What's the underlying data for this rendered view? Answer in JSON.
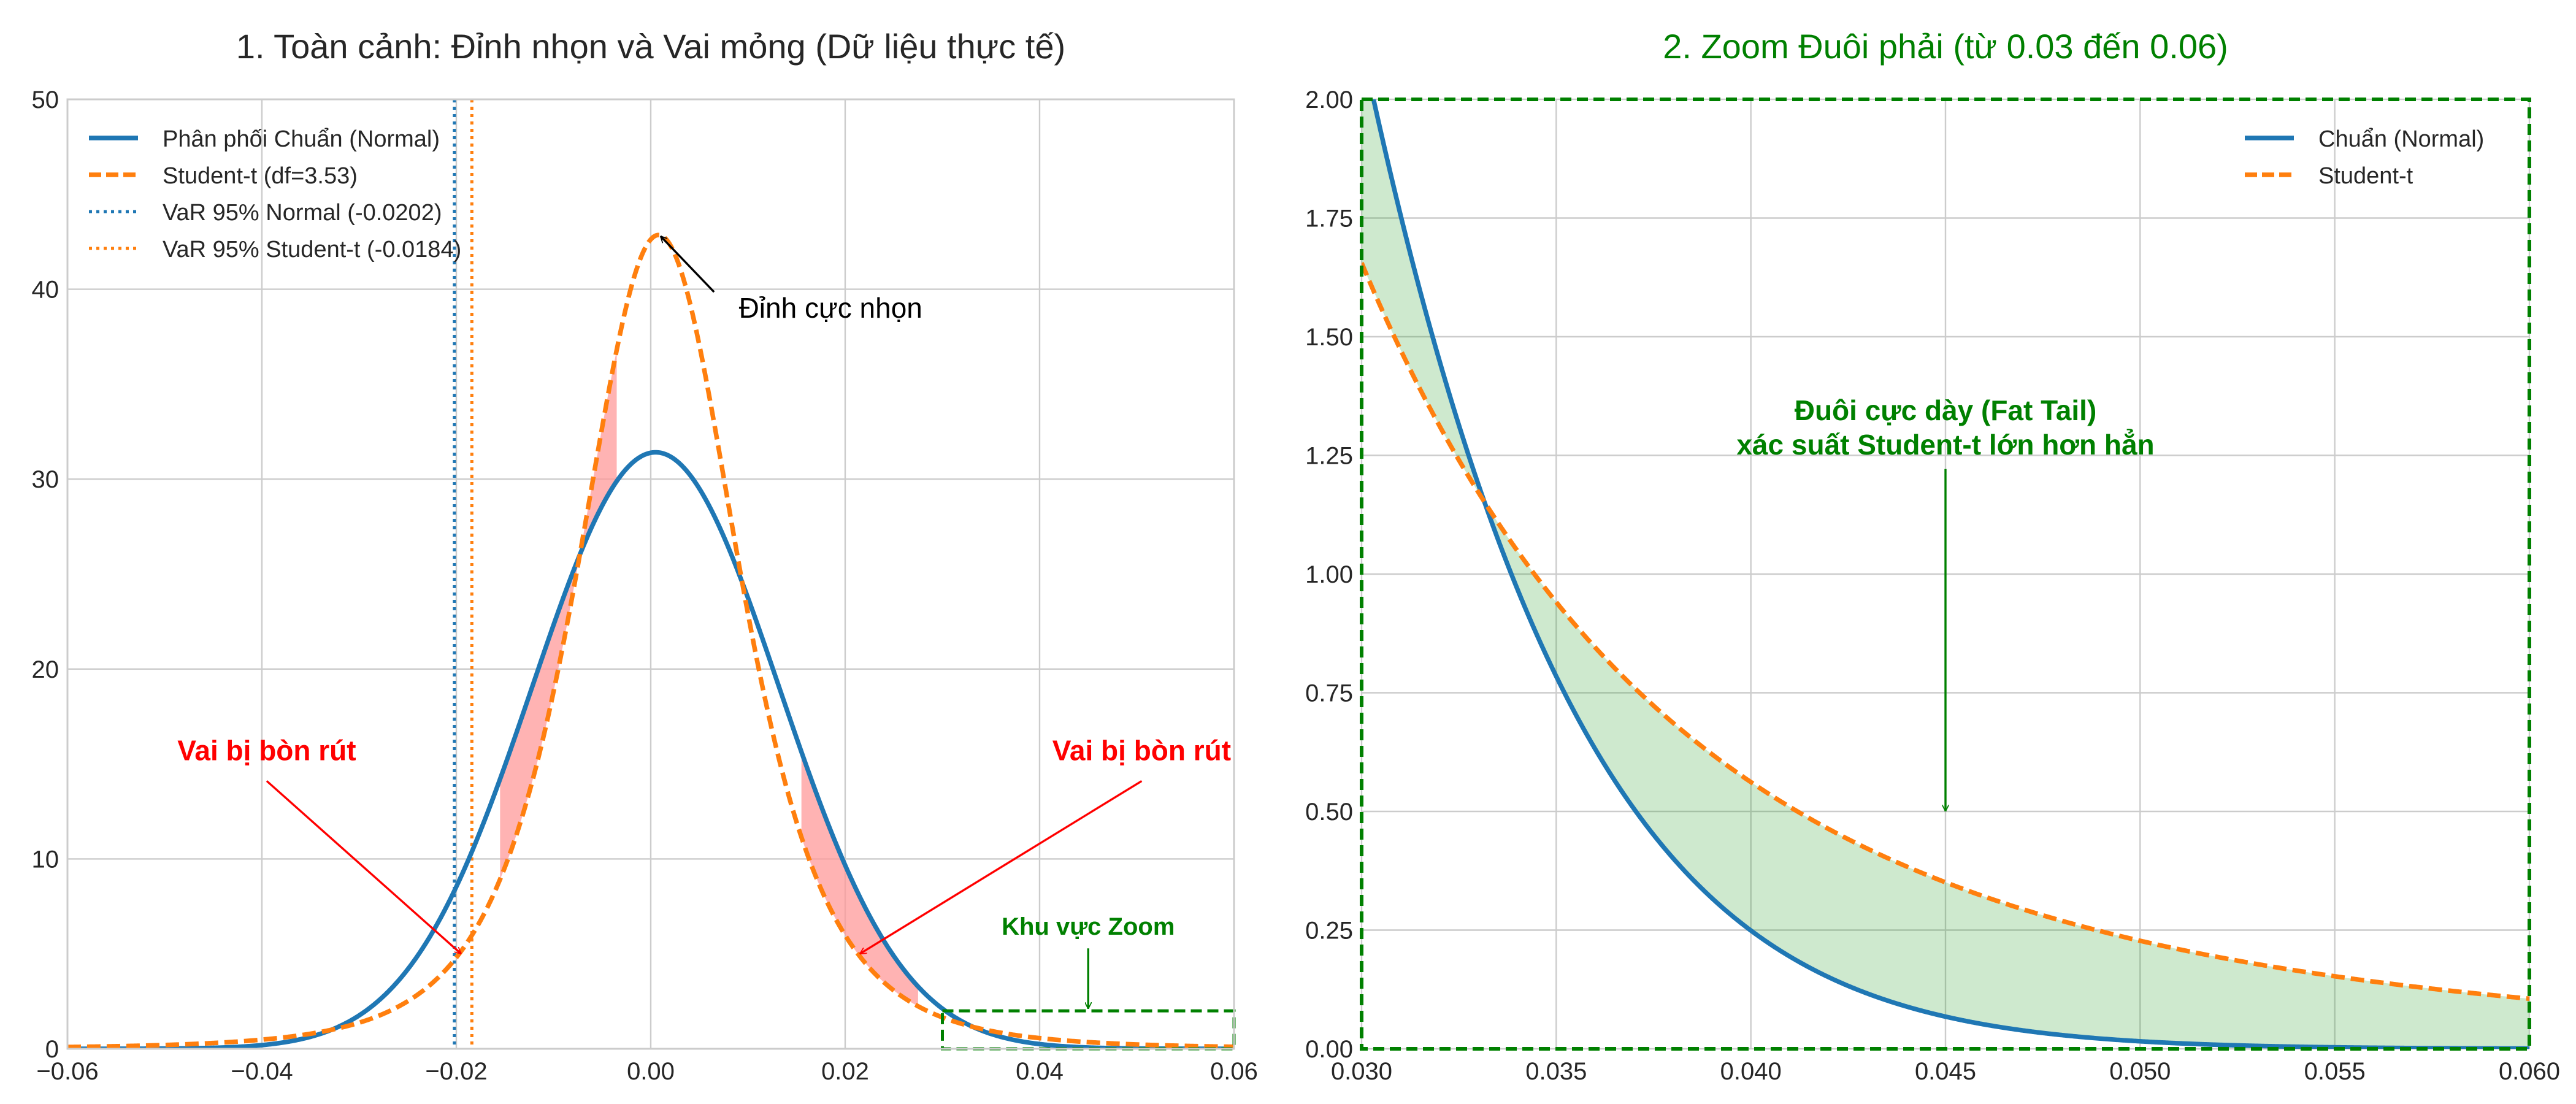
{
  "chart_data": [
    {
      "type": "line",
      "title": "1. Toàn cảnh: Đỉnh nhọn và Vai mỏng (Dữ liệu thực tế)",
      "xlabel": "",
      "ylabel": "",
      "xlim": [
        -0.06,
        0.06
      ],
      "ylim": [
        0,
        50
      ],
      "xticks": [
        "−0.06",
        "−0.04",
        "−0.02",
        "0.00",
        "0.02",
        "0.04",
        "0.06"
      ],
      "xtick_values": [
        -0.06,
        -0.04,
        -0.02,
        0.0,
        0.02,
        0.04,
        0.06
      ],
      "yticks": [
        "0",
        "10",
        "20",
        "30",
        "40",
        "50"
      ],
      "ytick_values": [
        0,
        10,
        20,
        30,
        40,
        50
      ],
      "grid": true,
      "legend_position": "top-left",
      "distributions": {
        "normal": {
          "mu": 0.0005,
          "sigma": 0.0127
        },
        "student_t": {
          "df": 3.53,
          "loc": 0.0008,
          "scale": 0.00868
        }
      },
      "series": [
        {
          "name": "Phân phối Chuẩn (Normal)",
          "kind": "normal-pdf",
          "color": "#1f77b4",
          "style": "solid"
        },
        {
          "name": "Student-t (df=3.53)",
          "kind": "student-t-pdf",
          "color": "#ff7f0e",
          "style": "dashed"
        }
      ],
      "vlines": [
        {
          "name": "VaR 95% Normal (-0.0202)",
          "x": -0.0202,
          "color": "#1f77b4",
          "style": "dotted"
        },
        {
          "name": "VaR 95% Student-t (-0.0184)",
          "x": -0.0184,
          "color": "#ff7f0e",
          "style": "dotted"
        }
      ],
      "shaded_regions": [
        {
          "x_range": [
            -0.0155,
            -0.0035
          ],
          "color": "#ff9999"
        },
        {
          "x_range": [
            0.0155,
            0.0275
          ],
          "color": "#ff9999"
        }
      ],
      "annotations": [
        {
          "text": "Đỉnh cực nhọn",
          "point": [
            0.001,
            42.8
          ],
          "text_pos": [
            0.0185,
            38.5
          ],
          "color": "#000000"
        },
        {
          "text": "Vai bị bòn rút",
          "point": [
            -0.0195,
            5.0
          ],
          "text_pos": [
            -0.0395,
            15.2
          ],
          "color": "#ff0000"
        },
        {
          "text": "Vai bị bòn rút",
          "point": [
            0.0215,
            5.0
          ],
          "text_pos": [
            0.0505,
            15.2
          ],
          "color": "#ff0000"
        },
        {
          "text": "Khu vực Zoom",
          "point": [
            0.045,
            2.1
          ],
          "text_pos": [
            0.045,
            6.0
          ],
          "color": "#008000"
        }
      ],
      "zoom_box": {
        "x_range": [
          0.03,
          0.06
        ],
        "y_range": [
          0,
          2
        ],
        "color": "#008000"
      }
    },
    {
      "type": "line",
      "title": "2. Zoom Đuôi phải (từ 0.03 đến 0.06)",
      "xlabel": "",
      "ylabel": "",
      "xlim": [
        0.03,
        0.06
      ],
      "ylim": [
        0,
        2
      ],
      "xticks": [
        "0.030",
        "0.035",
        "0.040",
        "0.045",
        "0.050",
        "0.055",
        "0.060"
      ],
      "xtick_values": [
        0.03,
        0.035,
        0.04,
        0.045,
        0.05,
        0.055,
        0.06
      ],
      "yticks": [
        "0.00",
        "0.25",
        "0.50",
        "0.75",
        "1.00",
        "1.25",
        "1.50",
        "1.75",
        "2.00"
      ],
      "ytick_values": [
        0,
        0.25,
        0.5,
        0.75,
        1.0,
        1.25,
        1.5,
        1.75,
        2.0
      ],
      "grid": true,
      "legend_position": "top-right",
      "series": [
        {
          "name": "Chuẩn (Normal)",
          "kind": "normal-pdf",
          "color": "#1f77b4",
          "style": "solid"
        },
        {
          "name": "Student-t",
          "kind": "student-t-pdf",
          "color": "#ff7f0e",
          "style": "dashed"
        }
      ],
      "fill_between": {
        "color": "#2ca02c",
        "opacity": 0.23
      },
      "annotations": [
        {
          "text_lines": [
            "Đuôi cực dày (Fat Tail)",
            "xác suất Student-t lớn hơn hẳn"
          ],
          "point": [
            0.045,
            0.5
          ],
          "text_pos": [
            0.045,
            1.26
          ],
          "color": "#008000"
        }
      ],
      "frame_color": "#008000"
    }
  ]
}
